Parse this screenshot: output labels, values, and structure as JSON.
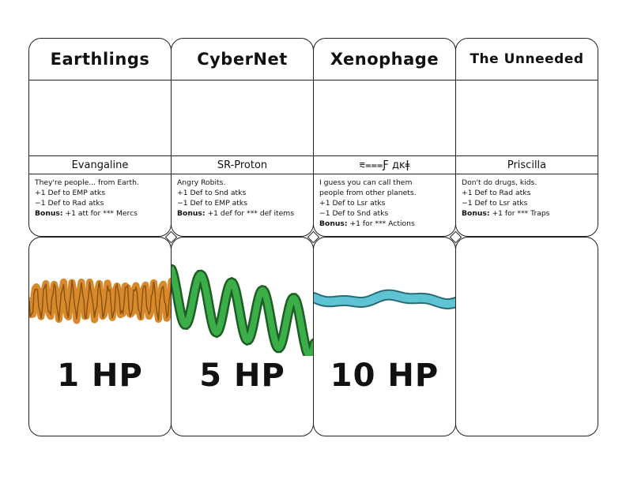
{
  "races": [
    {
      "name": "Earthlings",
      "leader": "Evangaline",
      "desc": [
        "They're people... from Earth.",
        "+1 Def to EMP atks",
        "−1 Def to Rad atks"
      ],
      "bonus_label": "Bonus:",
      "bonus_text": " +1 att for *** Mercs"
    },
    {
      "name": "CyberNet",
      "leader": "SR-Proton",
      "desc": [
        "Angry Robits.",
        "+1 Def to Snd atks",
        "−1 Def to EMP atks"
      ],
      "bonus_label": "Bonus:",
      "bonus_text": " +1 def for *** def items"
    },
    {
      "name": "Xenophage",
      "leader": "⩳⩶Ƒ дĸǂ",
      "desc": [
        "I guess you can call them",
        "people from other planets.",
        "+1 Def to Lsr atks",
        "−1 Def to Snd atks"
      ],
      "bonus_label": "Bonus:",
      "bonus_text": " +1 for *** Actions"
    },
    {
      "name": "The Unneeded",
      "leader": "Priscilla",
      "desc": [
        "Don't do drugs, kids.",
        "+1 Def to Rad atks",
        "−1 Def to Lsr atks"
      ],
      "bonus_label": "Bonus:",
      "bonus_text": " +1 for *** Traps"
    }
  ],
  "hp_cards": [
    {
      "label": "1 HP",
      "wave_color": "#d88a2a",
      "wave_icon": "orange-wave"
    },
    {
      "label": "5 HP",
      "wave_color": "#3cae49",
      "wave_icon": "green-wave"
    },
    {
      "label": "10 HP",
      "wave_color": "#5ec3d2",
      "wave_icon": "cyan-wave"
    },
    {
      "label": "",
      "wave_color": "",
      "wave_icon": ""
    }
  ]
}
